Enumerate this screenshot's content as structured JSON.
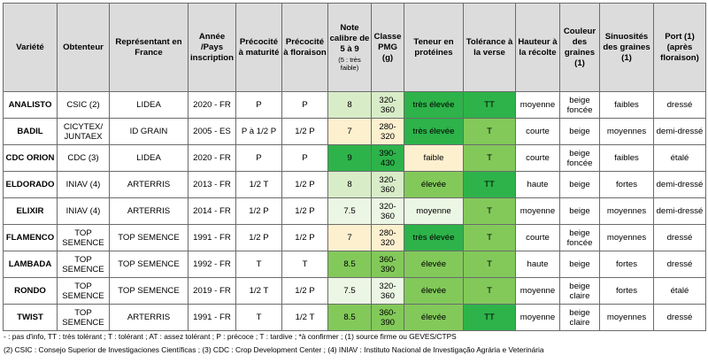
{
  "table": {
    "headers": [
      {
        "label": "Variété"
      },
      {
        "label": "Obtenteur"
      },
      {
        "label": "Représentant en France"
      },
      {
        "label": "Année /Pays inscription"
      },
      {
        "label": "Précocité à maturité"
      },
      {
        "label": "Précocité à floraison"
      },
      {
        "label": "Note calibre de 5 à 9",
        "sub": "(5 : très faible)"
      },
      {
        "label": "Classe PMG (g)"
      },
      {
        "label": "Teneur en protéines"
      },
      {
        "label": "Tolérance à la verse"
      },
      {
        "label": "Hauteur à la récolte"
      },
      {
        "label": "Couleur des graines (1)"
      },
      {
        "label": "Sinuosités des graines (1)"
      },
      {
        "label": "Port (1) (après floraison)"
      }
    ],
    "rows": [
      {
        "cells": [
          "ANALISTO",
          "CSIC (2)",
          "LIDEA",
          "2020 - FR",
          "P",
          "P",
          "8",
          "320-360",
          "très élevée",
          "TT",
          "moyenne",
          "beige foncée",
          "faibles",
          "dressé"
        ],
        "fills": [
          "",
          "",
          "",
          "",
          "",
          "",
          "#d8ecc8",
          "#d8ecc8",
          "#2db34a",
          "#2db34a",
          "",
          "",
          "",
          ""
        ]
      },
      {
        "cells": [
          "BADIL",
          "CICYTEX/ JUNTAEX",
          "ID GRAIN",
          "2005 - ES",
          "P à 1/2 P",
          "1/2 P",
          "7",
          "280-320",
          "très élevée",
          "T",
          "courte",
          "beige",
          "moyennes",
          "demi-dressé"
        ],
        "fills": [
          "",
          "",
          "",
          "",
          "",
          "",
          "#fdf0cf",
          "#fdf0cf",
          "#2db34a",
          "#82c95a",
          "",
          "",
          "",
          ""
        ]
      },
      {
        "cells": [
          "CDC ORION",
          "CDC (3)",
          "LIDEA",
          "2020 - FR",
          "P",
          "P",
          "9",
          "390-430",
          "faible",
          "T",
          "courte",
          "beige foncée",
          "faibles",
          "étalé"
        ],
        "fills": [
          "",
          "",
          "",
          "",
          "",
          "",
          "#2db34a",
          "#2db34a",
          "#fdf0cf",
          "#82c95a",
          "",
          "",
          "",
          ""
        ]
      },
      {
        "cells": [
          "ELDORADO",
          "INIAV (4)",
          "ARTERRIS",
          "2013 - FR",
          "1/2 T",
          "1/2 P",
          "8",
          "320-360",
          "élevée",
          "TT",
          "haute",
          "beige",
          "fortes",
          "demi-dressé"
        ],
        "fills": [
          "",
          "",
          "",
          "",
          "",
          "",
          "#d8ecc8",
          "#d8ecc8",
          "#82c95a",
          "#2db34a",
          "",
          "",
          "",
          ""
        ]
      },
      {
        "cells": [
          "ELIXIR",
          "INIAV (4)",
          "ARTERRIS",
          "2014 - FR",
          "1/2 P",
          "1/2 P",
          "7.5",
          "320-360",
          "moyenne",
          "T",
          "moyenne",
          "beige",
          "moyennes",
          "demi-dressé"
        ],
        "fills": [
          "",
          "",
          "",
          "",
          "",
          "",
          "#ecf6e4",
          "#ecf6e4",
          "#ecf6e4",
          "#82c95a",
          "",
          "",
          "",
          ""
        ]
      },
      {
        "cells": [
          "FLAMENCO",
          "TOP SEMENCE",
          "TOP SEMENCE",
          "1991 - FR",
          "1/2 P",
          "1/2 P",
          "7",
          "280-320",
          "très élevée",
          "T",
          "courte",
          "beige foncée",
          "moyennes",
          "dressé"
        ],
        "fills": [
          "",
          "",
          "",
          "",
          "",
          "",
          "#fdf0cf",
          "#fdf0cf",
          "#2db34a",
          "#82c95a",
          "",
          "",
          "",
          ""
        ]
      },
      {
        "cells": [
          "LAMBADA",
          "TOP SEMENCE",
          "TOP SEMENCE",
          "1992 - FR",
          "T",
          "T",
          "8.5",
          "360-390",
          "élevée",
          "T",
          "haute",
          "beige",
          "fortes",
          "dressé"
        ],
        "fills": [
          "",
          "",
          "",
          "",
          "",
          "",
          "#82c95a",
          "#82c95a",
          "#82c95a",
          "#82c95a",
          "",
          "",
          "",
          ""
        ]
      },
      {
        "cells": [
          "RONDO",
          "TOP SEMENCE",
          "TOP SEMENCE",
          "2019 - FR",
          "1/2 T",
          "1/2 P",
          "7.5",
          "320-360",
          "élevée",
          "T",
          "moyenne",
          "beige claire",
          "fortes",
          "étalé"
        ],
        "fills": [
          "",
          "",
          "",
          "",
          "",
          "",
          "#ecf6e4",
          "#ecf6e4",
          "#82c95a",
          "#82c95a",
          "",
          "",
          "",
          ""
        ]
      },
      {
        "cells": [
          "TWIST",
          "TOP SEMENCE",
          "ARTERRIS",
          "1991 - FR",
          "T",
          "1/2 T",
          "8.5",
          "360-390",
          "élevée",
          "TT",
          "moyenne",
          "beige claire",
          "moyennes",
          "dressé"
        ],
        "fills": [
          "",
          "",
          "",
          "",
          "",
          "",
          "#82c95a",
          "#82c95a",
          "#82c95a",
          "#2db34a",
          "",
          "",
          "",
          ""
        ]
      }
    ]
  },
  "footnotes": [
    "- : pas d'info, TT : très tolérant ; T : tolérant ; AT : assez tolérant ; P : précoce ; T : tardive ; *à confirmer ; (1) source firme ou GEVES/CTPS",
    "(2) CSIC : Consejo Superior de Investigaciones Científicas ; (3) CDC : Crop Development Center ; (4) INIAV : Instituto Nacional de Investigação Agrária e Veterinária"
  ]
}
